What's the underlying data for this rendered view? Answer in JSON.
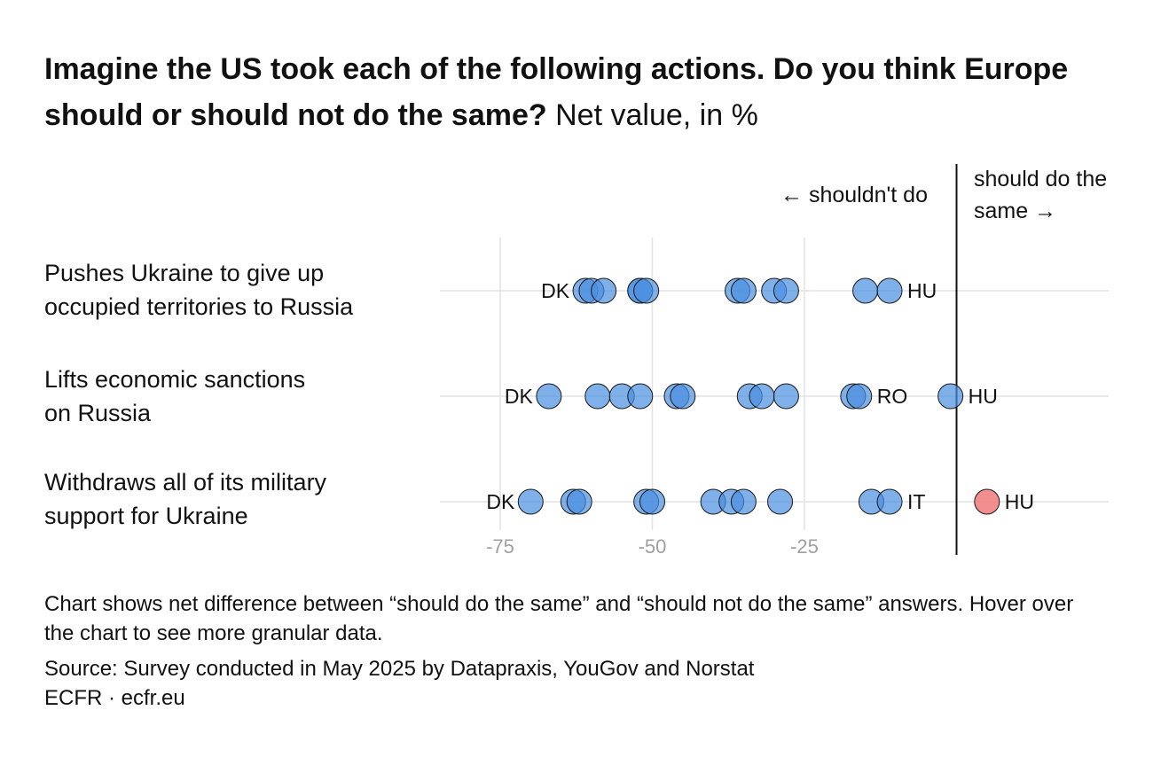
{
  "title": {
    "bold": "Imagine the US took each of the following actions. Do you think Europe should or should not do the same?",
    "regular": "Net value, in %"
  },
  "annotations": {
    "left": "← shouldn't do",
    "right": "should do the same →"
  },
  "chart_data": {
    "type": "dot-plot",
    "x_axis": {
      "range": [
        -79,
        3
      ],
      "ticks": [
        -75,
        -50,
        -25
      ],
      "zero_line": 0,
      "grid": true
    },
    "rows": [
      {
        "label": "Pushes Ukraine to give up occupied territories to Russia",
        "values": [
          -61,
          -60,
          -58,
          -52,
          -52,
          -51,
          -36,
          -35,
          -30,
          -28,
          -15,
          -11
        ],
        "value_labels": [
          {
            "text": "DK",
            "value": -61,
            "side": "left"
          },
          {
            "text": "HU",
            "value": -11,
            "side": "right"
          }
        ]
      },
      {
        "label": "Lifts economic sanctions on Russia",
        "values": [
          -67,
          -59,
          -55,
          -52,
          -46,
          -45,
          -34,
          -32,
          -28,
          -17,
          -16,
          -1
        ],
        "value_labels": [
          {
            "text": "DK",
            "value": -67,
            "side": "left"
          },
          {
            "text": "RO",
            "value": -16,
            "side": "right"
          },
          {
            "text": "HU",
            "value": -1,
            "side": "right"
          }
        ]
      },
      {
        "label": "Withdraws all of its military support for Ukraine",
        "values": [
          -70,
          -63,
          -62,
          -51,
          -50,
          -40,
          -37,
          -35,
          -29,
          -14,
          -11,
          5
        ],
        "value_labels": [
          {
            "text": "DK",
            "value": -70,
            "side": "left"
          },
          {
            "text": "IT",
            "value": -11,
            "side": "right"
          },
          {
            "text": "HU",
            "value": 5,
            "side": "right"
          }
        ]
      }
    ],
    "colors": {
      "negative": "#4a8fe0",
      "positive": "#f07a7a",
      "stroke": "#1a1a1a",
      "grid": "#e2e2e2",
      "tick": "#a0a0a0",
      "zero": "#111111"
    }
  },
  "footer": {
    "note": "Chart shows net difference between “should do the same” and “should not do the same” answers. Hover over the chart to see more granular data.",
    "source": "Source: Survey conducted in May 2025 by Datapraxis, YouGov and Norstat",
    "credit": "ECFR · ecfr.eu"
  }
}
